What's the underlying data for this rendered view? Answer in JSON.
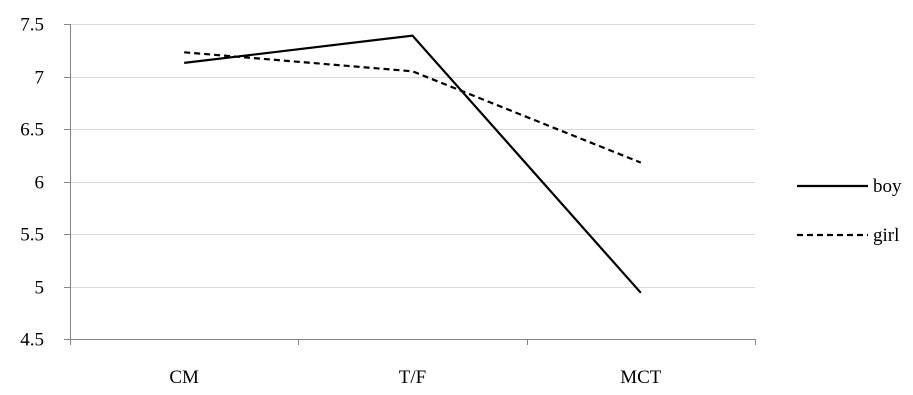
{
  "chart_data": {
    "type": "line",
    "categories": [
      "CM",
      "T/F",
      "MCT"
    ],
    "series": [
      {
        "name": "boy",
        "values": [
          7.13,
          7.39,
          4.94
        ],
        "line_style": "solid",
        "color": "#000000"
      },
      {
        "name": "girl",
        "values": [
          7.23,
          7.05,
          6.18
        ],
        "line_style": "dashed",
        "color": "#000000"
      }
    ],
    "ylim": [
      4.5,
      7.5
    ],
    "yticks": [
      4.5,
      5,
      5.5,
      6,
      6.5,
      7,
      7.5
    ],
    "ytick_labels": [
      "4.5",
      "5",
      "5.5",
      "6",
      "6.5",
      "7",
      "7.5"
    ],
    "grid": "horizontal",
    "legend": "right",
    "gridline_color": "#d9d9d9",
    "axis_color": "#868686"
  }
}
